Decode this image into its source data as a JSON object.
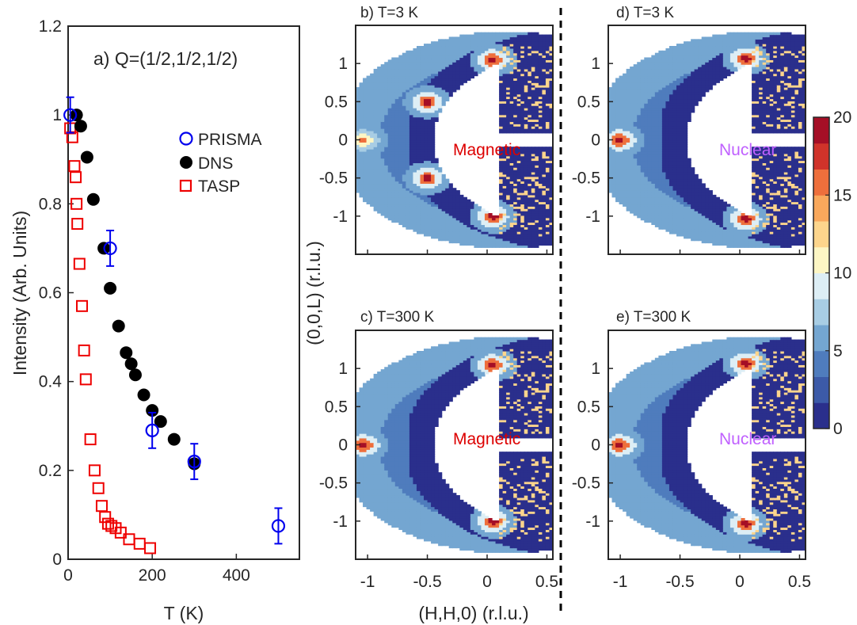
{
  "chart_data": [
    {
      "id": "a",
      "type": "scatter",
      "annotation": "a) Q=(1/2,1/2,1/2)",
      "xlabel": "T (K)",
      "ylabel": "Intensity (Arb. Units)",
      "xlim": [
        0,
        550
      ],
      "ylim": [
        0,
        1.2
      ],
      "xticks": [
        "0",
        "200",
        "400"
      ],
      "yticks": [
        "0",
        "0.2",
        "0.4",
        "0.6",
        "0.8",
        "1",
        "1.2"
      ],
      "legend_position": "top-right",
      "series": [
        {
          "name": "PRISMA",
          "marker": "open-circle",
          "color": "#0000ee",
          "points": [
            {
              "x": 5,
              "y": 1.0,
              "err": 0.04
            },
            {
              "x": 100,
              "y": 0.7,
              "err": 0.04
            },
            {
              "x": 200,
              "y": 0.29,
              "err": 0.04
            },
            {
              "x": 300,
              "y": 0.22,
              "err": 0.04
            },
            {
              "x": 500,
              "y": 0.075,
              "err": 0.04
            }
          ]
        },
        {
          "name": "DNS",
          "marker": "filled-circle",
          "color": "#000000",
          "points": [
            {
              "x": 20,
              "y": 1.0
            },
            {
              "x": 30,
              "y": 0.975
            },
            {
              "x": 45,
              "y": 0.905
            },
            {
              "x": 60,
              "y": 0.81
            },
            {
              "x": 85,
              "y": 0.7
            },
            {
              "x": 100,
              "y": 0.61
            },
            {
              "x": 120,
              "y": 0.525
            },
            {
              "x": 138,
              "y": 0.465
            },
            {
              "x": 150,
              "y": 0.44
            },
            {
              "x": 160,
              "y": 0.415
            },
            {
              "x": 180,
              "y": 0.37
            },
            {
              "x": 200,
              "y": 0.335
            },
            {
              "x": 220,
              "y": 0.31
            },
            {
              "x": 252,
              "y": 0.27
            },
            {
              "x": 300,
              "y": 0.215
            }
          ]
        },
        {
          "name": "TASP",
          "marker": "open-square",
          "color": "#ee0000",
          "points": [
            {
              "x": 5,
              "y": 0.97
            },
            {
              "x": 10,
              "y": 0.95
            },
            {
              "x": 15,
              "y": 0.885
            },
            {
              "x": 18,
              "y": 0.86
            },
            {
              "x": 20,
              "y": 0.8
            },
            {
              "x": 22,
              "y": 0.755
            },
            {
              "x": 27,
              "y": 0.665
            },
            {
              "x": 33,
              "y": 0.57
            },
            {
              "x": 38,
              "y": 0.47
            },
            {
              "x": 42,
              "y": 0.405
            },
            {
              "x": 53,
              "y": 0.27
            },
            {
              "x": 63,
              "y": 0.2
            },
            {
              "x": 72,
              "y": 0.16
            },
            {
              "x": 80,
              "y": 0.12
            },
            {
              "x": 88,
              "y": 0.095
            },
            {
              "x": 95,
              "y": 0.08
            },
            {
              "x": 103,
              "y": 0.075
            },
            {
              "x": 113,
              "y": 0.07
            },
            {
              "x": 125,
              "y": 0.06
            },
            {
              "x": 145,
              "y": 0.045
            },
            {
              "x": 170,
              "y": 0.035
            },
            {
              "x": 195,
              "y": 0.025
            }
          ]
        }
      ]
    },
    {
      "id": "maps",
      "type": "heatmap",
      "xlabel": "(H,H,0) (r.l.u.)",
      "ylabel": "(0,0,L) (r.l.u.)",
      "xlim": [
        -1.1,
        0.55
      ],
      "ylim": [
        -1.5,
        1.5
      ],
      "xticks": [
        "-1",
        "-0.5",
        "0",
        "0.5"
      ],
      "yticks": [
        "1",
        "0.5",
        "0",
        "-0.5",
        "-1"
      ],
      "colorbar": {
        "min": 0,
        "max": 20,
        "ticks": [
          "20",
          "15",
          "10",
          "5",
          "0"
        ],
        "colors": [
          "#2a2f8c",
          "#3c5aa8",
          "#4f7cbd",
          "#74a6d1",
          "#a8cde4",
          "#ddeef5",
          "#fdf6c4",
          "#fdd58c",
          "#f9a85c",
          "#ee6f3c",
          "#d0332a",
          "#a50f26"
        ]
      },
      "panels": [
        {
          "id": "b",
          "title": "b) T=3 K",
          "label": "Magnetic",
          "peaks": [
            {
              "h": -0.5,
              "l": 0.5,
              "i": 20
            },
            {
              "h": -0.5,
              "l": -0.5,
              "i": 20
            },
            {
              "h": 0.05,
              "l": 1.05,
              "i": 20
            },
            {
              "h": 0.05,
              "l": -1.0,
              "i": 20
            },
            {
              "h": -1.03,
              "l": 0.0,
              "i": 15
            }
          ]
        },
        {
          "id": "c",
          "title": "c) T=300 K",
          "label": "Magnetic",
          "peaks": [
            {
              "h": 0.05,
              "l": 1.05,
              "i": 20
            },
            {
              "h": 0.05,
              "l": -1.0,
              "i": 20
            },
            {
              "h": -1.03,
              "l": 0.0,
              "i": 20
            }
          ]
        },
        {
          "id": "d",
          "title": "d) T=3 K",
          "label": "Nuclear",
          "peaks": [
            {
              "h": -1.0,
              "l": 0.0,
              "i": 20
            },
            {
              "h": 0.05,
              "l": 1.07,
              "i": 20
            },
            {
              "h": 0.05,
              "l": -1.03,
              "i": 20
            }
          ]
        },
        {
          "id": "e",
          "title": "e) T=300 K",
          "label": "Nuclear",
          "peaks": [
            {
              "h": -1.0,
              "l": 0.0,
              "i": 20
            },
            {
              "h": 0.05,
              "l": 1.07,
              "i": 20
            },
            {
              "h": 0.05,
              "l": -1.03,
              "i": 20
            }
          ]
        }
      ]
    }
  ]
}
